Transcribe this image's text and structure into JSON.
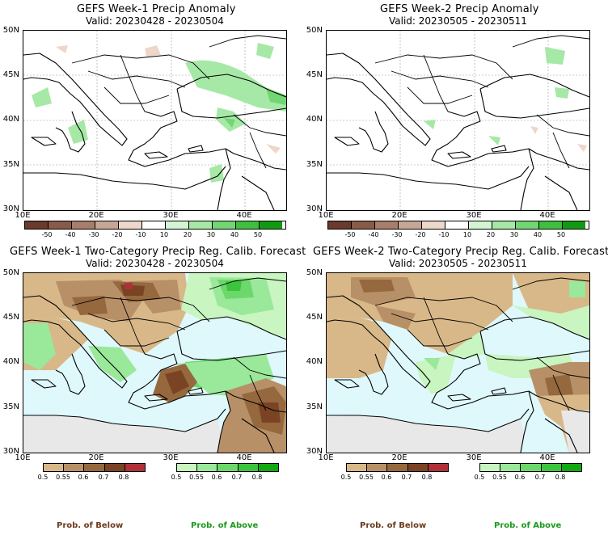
{
  "panels": [
    {
      "title": "GEFS Week-1 Precip Anomaly",
      "valid": "Valid: 20230428 - 20230504"
    },
    {
      "title": "GEFS Week-2 Precip Anomaly",
      "valid": "Valid: 20230505 - 20230511"
    },
    {
      "title": "GEFS Week-1 Two-Category Precip Reg. Calib. Forecast",
      "valid": "Valid: 20230428 - 20230504"
    },
    {
      "title": "GEFS Week-2 Two-Category Precip Reg. Calib. Forecast",
      "valid": "Valid: 20230505 - 20230511"
    }
  ],
  "map_axes": {
    "lat_labels": [
      "50N",
      "45N",
      "40N",
      "35N",
      "30N"
    ],
    "lon_labels": [
      "10E",
      "20E",
      "30E",
      "40E"
    ]
  },
  "anomaly_legend": {
    "ticks": [
      "-50",
      "-40",
      "-30",
      "-20",
      "-10",
      "10",
      "20",
      "30",
      "40",
      "50"
    ],
    "colors": [
      "#6b3a2a",
      "#8a5a48",
      "#a87e6a",
      "#c8a696",
      "#ecd7ca",
      "#ffffff",
      "#d3f5d3",
      "#a6e8a6",
      "#72d672",
      "#3ec03e",
      "#129a12"
    ]
  },
  "prob_legend": {
    "below_ticks": [
      "0.5",
      "0.55",
      "0.6",
      "0.7",
      "0.8"
    ],
    "below_colors": [
      "#d8b888",
      "#b89068",
      "#95683e",
      "#7a4424",
      "#b0303a"
    ],
    "above_ticks": [
      "0.5",
      "0.55",
      "0.6",
      "0.7",
      "0.8"
    ],
    "above_colors": [
      "#c8f5c0",
      "#9ae89a",
      "#6cd86c",
      "#3cc43c",
      "#11a811"
    ],
    "below_label": "Prob. of Below",
    "above_label": "Prob. of Above"
  },
  "colors": {
    "sea_prob": "#dff8fb",
    "no_data": "#e8e8e8",
    "below_label_color": "#6b3a1e",
    "above_label_color": "#1a9a1a"
  }
}
